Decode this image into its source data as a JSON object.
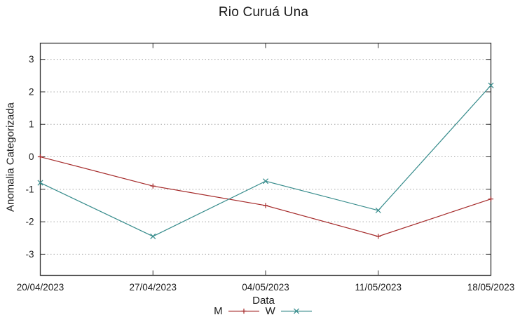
{
  "chart_data": {
    "type": "line",
    "title": "Rio Curuá Una",
    "xlabel": "Data",
    "ylabel": "Anomalia Categorizada",
    "categories": [
      "20/04/2023",
      "27/04/2023",
      "04/05/2023",
      "11/05/2023",
      "18/05/2023"
    ],
    "ytick_values": [
      -3,
      -2,
      -1,
      0,
      1,
      2,
      3
    ],
    "ytick_labels": [
      "-3",
      "-2",
      "-1",
      "0",
      "1",
      "2",
      "3"
    ],
    "ylim": [
      -3.65,
      3.5
    ],
    "grid": "horizontal-dotted",
    "legend_position": "bottom-center",
    "series": [
      {
        "name": "M",
        "marker": "plus",
        "color": "#a52a2a",
        "values": [
          0.0,
          -0.9,
          -1.5,
          -2.45,
          -1.3
        ]
      },
      {
        "name": "W",
        "marker": "cross",
        "color": "#378c8c",
        "values": [
          -0.8,
          -2.45,
          -0.75,
          -1.65,
          2.2
        ]
      }
    ],
    "axis_color": "#333333",
    "grid_color": "#a8a8a8",
    "text_color": "#1a1a1a"
  }
}
